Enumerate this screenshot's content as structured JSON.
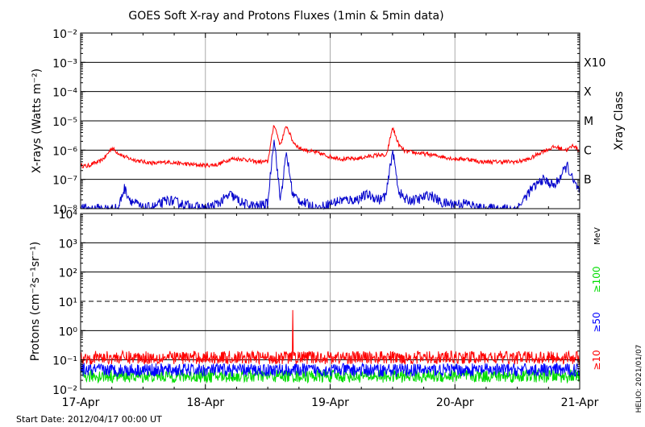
{
  "chart_data": [
    {
      "type": "line",
      "title": "GOES Soft X-ray and Protons Fluxes   (1min & 5min data)",
      "ylabel": "X-rays (Watts m⁻²)",
      "yscale": "log",
      "ylim": [
        1e-08,
        0.01
      ],
      "y_tick_labels": [
        "10⁻²",
        "10⁻³",
        "10⁻⁴",
        "10⁻⁵",
        "10⁻⁶",
        "10⁻⁷",
        "10⁻⁸"
      ],
      "y_tick_values": [
        0.01,
        0.001,
        0.0001,
        1e-05,
        1e-06,
        1e-07,
        1e-08
      ],
      "right_label": "Xray Class",
      "class_labels": [
        "X10",
        "X",
        "M",
        "C",
        "B"
      ],
      "class_values": [
        0.001,
        0.0001,
        1e-05,
        1e-06,
        1e-07
      ],
      "grid": true,
      "x_categories": [
        "17-Apr",
        "18-Apr",
        "19-Apr",
        "20-Apr",
        "21-Apr"
      ],
      "series": [
        {
          "color": "#ff0000",
          "x": [
            0,
            0.05,
            0.1,
            0.15,
            0.2,
            0.25,
            0.3,
            0.35,
            0.4,
            0.5,
            0.6,
            0.7,
            0.8,
            0.9,
            1.0,
            1.1,
            1.2,
            1.3,
            1.4,
            1.5,
            1.55,
            1.6,
            1.65,
            1.7,
            1.75,
            1.8,
            1.9,
            2.0,
            2.1,
            2.2,
            2.3,
            2.4,
            2.45,
            2.5,
            2.55,
            2.6,
            2.7,
            2.8,
            2.9,
            3.0,
            3.1,
            3.2,
            3.3,
            3.4,
            3.5,
            3.6,
            3.7,
            3.8,
            3.9,
            3.95,
            4.0
          ],
          "y": [
            3e-07,
            2.8e-07,
            3.5e-07,
            4e-07,
            6e-07,
            1.2e-06,
            8e-07,
            6e-07,
            5e-07,
            4e-07,
            3.5e-07,
            4e-07,
            3.5e-07,
            3.2e-07,
            3e-07,
            3.2e-07,
            5e-07,
            5e-07,
            4e-07,
            4e-07,
            8e-06,
            1.5e-06,
            7e-06,
            2e-06,
            1.2e-06,
            1e-06,
            8e-07,
            6e-07,
            5e-07,
            5e-07,
            6e-07,
            7e-07,
            6e-07,
            6e-06,
            1.5e-06,
            9e-07,
            8e-07,
            7e-07,
            6e-07,
            5e-07,
            5e-07,
            4e-07,
            4e-07,
            4e-07,
            4e-07,
            5e-07,
            9e-07,
            1.3e-06,
            1e-06,
            1.5e-06,
            9e-07
          ]
        },
        {
          "color": "#0000cc",
          "x": [
            0,
            0.1,
            0.2,
            0.3,
            0.35,
            0.4,
            0.5,
            0.6,
            0.7,
            0.8,
            0.9,
            1.0,
            1.1,
            1.2,
            1.3,
            1.4,
            1.5,
            1.55,
            1.6,
            1.65,
            1.7,
            1.75,
            1.8,
            1.9,
            2.0,
            2.1,
            2.2,
            2.3,
            2.4,
            2.45,
            2.5,
            2.55,
            2.6,
            2.7,
            2.8,
            2.9,
            3.0,
            3.1,
            3.2,
            3.3,
            3.4,
            3.5,
            3.6,
            3.7,
            3.8,
            3.9,
            3.95,
            4.0
          ],
          "y": [
            1e-08,
            1e-08,
            1e-08,
            1e-08,
            5e-08,
            2e-08,
            1e-08,
            1.2e-08,
            2e-08,
            1.5e-08,
            1.2e-08,
            1e-08,
            1.5e-08,
            3e-08,
            1.5e-08,
            1.2e-08,
            1.5e-08,
            3e-06,
            2e-08,
            8e-07,
            3e-08,
            2e-08,
            1.5e-08,
            1e-08,
            1.5e-08,
            2e-08,
            2e-08,
            3e-08,
            2e-08,
            3e-08,
            1e-06,
            4e-08,
            2e-08,
            2e-08,
            3e-08,
            1.5e-08,
            1.5e-08,
            1.5e-08,
            1e-08,
            1e-08,
            1e-08,
            1e-08,
            4e-08,
            1e-07,
            6e-08,
            3e-07,
            8e-08,
            4e-08
          ]
        }
      ]
    },
    {
      "type": "line",
      "ylabel": "Protons (cm⁻²s⁻¹sr⁻¹)",
      "yscale": "log",
      "ylim": [
        0.01,
        10000
      ],
      "y_tick_labels": [
        "10⁴",
        "10³",
        "10²",
        "10¹",
        "10⁰",
        "10⁻¹",
        "10⁻²"
      ],
      "y_tick_values": [
        10000,
        1000,
        100,
        10,
        1,
        0.1,
        0.01
      ],
      "threshold": 10,
      "right_unit": "MeV",
      "grid": true,
      "x_categories": [
        "17-Apr",
        "18-Apr",
        "19-Apr",
        "20-Apr",
        "21-Apr"
      ],
      "series": [
        {
          "name": "≥10",
          "color": "#ff0000",
          "level": 0.12,
          "spike_x": 1.7,
          "spike_y": 5
        },
        {
          "name": "≥50",
          "color": "#0000ff",
          "level": 0.045
        },
        {
          "name": "≥100",
          "color": "#00dd00",
          "level": 0.028
        }
      ]
    }
  ],
  "footer": {
    "start_date": "Start Date: 2012/04/17 00:00 UT",
    "credit": "HELIO: 2021/01/07"
  }
}
